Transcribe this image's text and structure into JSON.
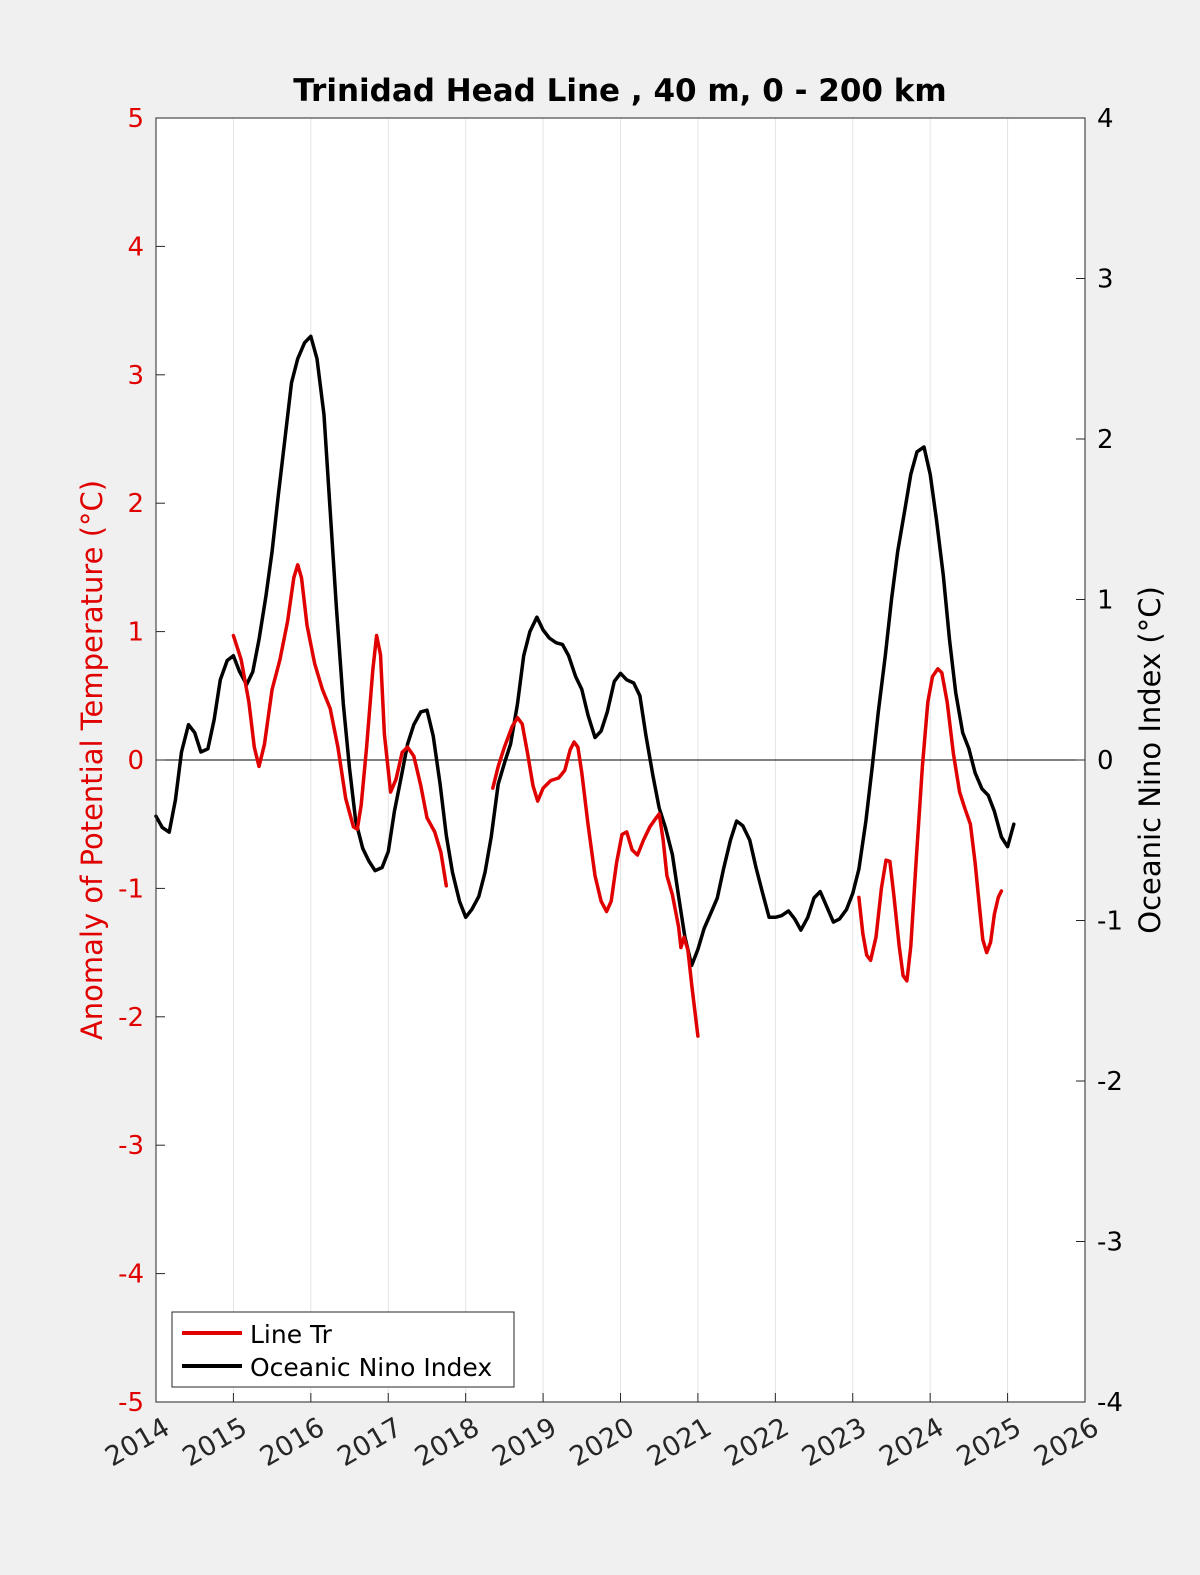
{
  "chart_data": {
    "type": "line",
    "title": "Trinidad Head Line , 40 m, 0 - 200 km",
    "ylabel": "Anomaly of Potential Temperature (°C)",
    "y2label": "Oceanic Nino Index (°C)",
    "xlim": [
      2014,
      2026
    ],
    "ylim": [
      -5,
      5
    ],
    "y2lim": [
      -4,
      4
    ],
    "xticks": [
      "2014",
      "2015",
      "2016",
      "2017",
      "2018",
      "2019",
      "2020",
      "2021",
      "2022",
      "2023",
      "2024",
      "2025",
      "2026"
    ],
    "yticks": [
      "-5",
      "-4",
      "-3",
      "-2",
      "-1",
      "0",
      "1",
      "2",
      "3",
      "4",
      "5"
    ],
    "y2ticks": [
      "-4",
      "-3",
      "-2",
      "-1",
      "0",
      "1",
      "2",
      "3",
      "4"
    ],
    "grid": "vertical",
    "legend_position": "bottom-left",
    "colors": {
      "line_tr": "#e00000",
      "oni": "#000000",
      "axis_left": "#e00000",
      "axis_right": "#000000"
    },
    "series": [
      {
        "name": "Line Tr",
        "axis": "left",
        "color": "#e00000",
        "segments": [
          [
            [
              2015.0,
              0.97
            ],
            [
              2015.1,
              0.78
            ],
            [
              2015.2,
              0.45
            ],
            [
              2015.27,
              0.1
            ],
            [
              2015.33,
              -0.05
            ],
            [
              2015.4,
              0.12
            ],
            [
              2015.5,
              0.55
            ],
            [
              2015.6,
              0.78
            ],
            [
              2015.7,
              1.08
            ],
            [
              2015.78,
              1.42
            ],
            [
              2015.83,
              1.52
            ],
            [
              2015.88,
              1.42
            ],
            [
              2015.95,
              1.05
            ],
            [
              2016.05,
              0.75
            ],
            [
              2016.15,
              0.55
            ],
            [
              2016.25,
              0.4
            ],
            [
              2016.35,
              0.1
            ],
            [
              2016.45,
              -0.3
            ],
            [
              2016.55,
              -0.52
            ],
            [
              2016.6,
              -0.54
            ],
            [
              2016.65,
              -0.35
            ],
            [
              2016.72,
              0.1
            ],
            [
              2016.8,
              0.7
            ],
            [
              2016.85,
              0.97
            ],
            [
              2016.9,
              0.82
            ],
            [
              2016.95,
              0.2
            ],
            [
              2017.03,
              -0.25
            ],
            [
              2017.1,
              -0.15
            ],
            [
              2017.18,
              0.06
            ],
            [
              2017.25,
              0.1
            ],
            [
              2017.33,
              0.03
            ],
            [
              2017.42,
              -0.2
            ],
            [
              2017.5,
              -0.45
            ],
            [
              2017.6,
              -0.56
            ],
            [
              2017.68,
              -0.72
            ],
            [
              2017.75,
              -0.98
            ]
          ],
          [
            [
              2018.35,
              -0.22
            ],
            [
              2018.42,
              -0.05
            ],
            [
              2018.5,
              0.1
            ],
            [
              2018.6,
              0.26
            ],
            [
              2018.67,
              0.33
            ],
            [
              2018.73,
              0.28
            ],
            [
              2018.8,
              0.05
            ],
            [
              2018.87,
              -0.2
            ],
            [
              2018.93,
              -0.32
            ],
            [
              2019.0,
              -0.22
            ],
            [
              2019.1,
              -0.16
            ],
            [
              2019.2,
              -0.14
            ],
            [
              2019.28,
              -0.08
            ],
            [
              2019.35,
              0.08
            ],
            [
              2019.4,
              0.14
            ],
            [
              2019.45,
              0.1
            ],
            [
              2019.5,
              -0.1
            ],
            [
              2019.58,
              -0.5
            ],
            [
              2019.67,
              -0.9
            ],
            [
              2019.75,
              -1.1
            ],
            [
              2019.82,
              -1.18
            ],
            [
              2019.88,
              -1.1
            ],
            [
              2019.95,
              -0.8
            ],
            [
              2020.02,
              -0.58
            ],
            [
              2020.08,
              -0.56
            ],
            [
              2020.15,
              -0.7
            ],
            [
              2020.22,
              -0.74
            ],
            [
              2020.3,
              -0.62
            ],
            [
              2020.38,
              -0.52
            ],
            [
              2020.45,
              -0.46
            ],
            [
              2020.5,
              -0.42
            ],
            [
              2020.55,
              -0.62
            ],
            [
              2020.6,
              -0.9
            ],
            [
              2020.67,
              -1.05
            ],
            [
              2020.75,
              -1.3
            ],
            [
              2020.78,
              -1.46
            ],
            [
              2020.82,
              -1.38
            ],
            [
              2020.87,
              -1.48
            ],
            [
              2020.92,
              -1.75
            ],
            [
              2020.96,
              -1.95
            ],
            [
              2021.0,
              -2.15
            ]
          ],
          [
            [
              2023.08,
              -1.07
            ],
            [
              2023.13,
              -1.35
            ],
            [
              2023.18,
              -1.52
            ],
            [
              2023.23,
              -1.56
            ],
            [
              2023.3,
              -1.38
            ],
            [
              2023.37,
              -1.0
            ],
            [
              2023.43,
              -0.78
            ],
            [
              2023.48,
              -0.79
            ],
            [
              2023.53,
              -1.05
            ],
            [
              2023.6,
              -1.45
            ],
            [
              2023.65,
              -1.68
            ],
            [
              2023.7,
              -1.72
            ],
            [
              2023.75,
              -1.45
            ],
            [
              2023.82,
              -0.78
            ],
            [
              2023.9,
              -0.05
            ],
            [
              2023.97,
              0.45
            ],
            [
              2024.03,
              0.65
            ],
            [
              2024.1,
              0.71
            ],
            [
              2024.15,
              0.68
            ],
            [
              2024.22,
              0.45
            ],
            [
              2024.3,
              0.05
            ],
            [
              2024.38,
              -0.25
            ],
            [
              2024.45,
              -0.38
            ],
            [
              2024.52,
              -0.5
            ],
            [
              2024.58,
              -0.8
            ],
            [
              2024.63,
              -1.1
            ],
            [
              2024.68,
              -1.4
            ],
            [
              2024.73,
              -1.5
            ],
            [
              2024.78,
              -1.42
            ],
            [
              2024.83,
              -1.2
            ],
            [
              2024.88,
              -1.07
            ],
            [
              2024.92,
              -1.02
            ]
          ]
        ]
      },
      {
        "name": "Oceanic Nino Index",
        "axis": "right",
        "color": "#000000",
        "segments": [
          [
            [
              2014.0,
              -0.35
            ],
            [
              2014.08,
              -0.42
            ],
            [
              2014.17,
              -0.45
            ],
            [
              2014.25,
              -0.25
            ],
            [
              2014.33,
              0.05
            ],
            [
              2014.42,
              0.22
            ],
            [
              2014.5,
              0.17
            ],
            [
              2014.58,
              0.05
            ],
            [
              2014.67,
              0.07
            ],
            [
              2014.75,
              0.25
            ],
            [
              2014.83,
              0.5
            ],
            [
              2014.92,
              0.62
            ],
            [
              2015.0,
              0.65
            ],
            [
              2015.08,
              0.55
            ],
            [
              2015.17,
              0.47
            ],
            [
              2015.25,
              0.55
            ],
            [
              2015.33,
              0.75
            ],
            [
              2015.42,
              1.02
            ],
            [
              2015.5,
              1.3
            ],
            [
              2015.58,
              1.65
            ],
            [
              2015.67,
              2.02
            ],
            [
              2015.75,
              2.35
            ],
            [
              2015.83,
              2.5
            ],
            [
              2015.92,
              2.6
            ],
            [
              2016.0,
              2.64
            ],
            [
              2016.08,
              2.5
            ],
            [
              2016.17,
              2.15
            ],
            [
              2016.25,
              1.55
            ],
            [
              2016.33,
              0.95
            ],
            [
              2016.42,
              0.35
            ],
            [
              2016.5,
              -0.05
            ],
            [
              2016.58,
              -0.38
            ],
            [
              2016.67,
              -0.55
            ],
            [
              2016.75,
              -0.63
            ],
            [
              2016.83,
              -0.69
            ],
            [
              2016.92,
              -0.67
            ],
            [
              2017.0,
              -0.57
            ],
            [
              2017.08,
              -0.32
            ],
            [
              2017.17,
              -0.1
            ],
            [
              2017.25,
              0.1
            ],
            [
              2017.33,
              0.22
            ],
            [
              2017.42,
              0.3
            ],
            [
              2017.5,
              0.31
            ],
            [
              2017.58,
              0.15
            ],
            [
              2017.67,
              -0.15
            ],
            [
              2017.75,
              -0.47
            ],
            [
              2017.83,
              -0.7
            ],
            [
              2017.92,
              -0.88
            ],
            [
              2018.0,
              -0.98
            ],
            [
              2018.08,
              -0.93
            ],
            [
              2018.17,
              -0.85
            ],
            [
              2018.25,
              -0.7
            ],
            [
              2018.33,
              -0.48
            ],
            [
              2018.42,
              -0.15
            ],
            [
              2018.5,
              -0.02
            ],
            [
              2018.58,
              0.1
            ],
            [
              2018.67,
              0.35
            ],
            [
              2018.75,
              0.65
            ],
            [
              2018.83,
              0.8
            ],
            [
              2018.92,
              0.89
            ],
            [
              2019.0,
              0.81
            ],
            [
              2019.08,
              0.76
            ],
            [
              2019.17,
              0.73
            ],
            [
              2019.25,
              0.72
            ],
            [
              2019.33,
              0.65
            ],
            [
              2019.42,
              0.52
            ],
            [
              2019.5,
              0.44
            ],
            [
              2019.58,
              0.28
            ],
            [
              2019.67,
              0.14
            ],
            [
              2019.75,
              0.18
            ],
            [
              2019.83,
              0.3
            ],
            [
              2019.92,
              0.49
            ],
            [
              2020.0,
              0.54
            ],
            [
              2020.08,
              0.5
            ],
            [
              2020.17,
              0.48
            ],
            [
              2020.25,
              0.4
            ],
            [
              2020.33,
              0.15
            ],
            [
              2020.42,
              -0.1
            ],
            [
              2020.5,
              -0.3
            ],
            [
              2020.58,
              -0.42
            ],
            [
              2020.67,
              -0.59
            ],
            [
              2020.75,
              -0.85
            ],
            [
              2020.83,
              -1.1
            ],
            [
              2020.92,
              -1.28
            ],
            [
              2021.0,
              -1.18
            ],
            [
              2021.08,
              -1.05
            ],
            [
              2021.17,
              -0.95
            ],
            [
              2021.25,
              -0.86
            ],
            [
              2021.33,
              -0.68
            ],
            [
              2021.42,
              -0.5
            ],
            [
              2021.5,
              -0.38
            ],
            [
              2021.58,
              -0.41
            ],
            [
              2021.67,
              -0.5
            ],
            [
              2021.75,
              -0.67
            ],
            [
              2021.83,
              -0.82
            ],
            [
              2021.92,
              -0.98
            ],
            [
              2022.0,
              -0.98
            ],
            [
              2022.08,
              -0.97
            ],
            [
              2022.17,
              -0.94
            ],
            [
              2022.25,
              -0.99
            ],
            [
              2022.33,
              -1.06
            ],
            [
              2022.42,
              -0.98
            ],
            [
              2022.5,
              -0.86
            ],
            [
              2022.58,
              -0.82
            ],
            [
              2022.67,
              -0.92
            ],
            [
              2022.75,
              -1.01
            ],
            [
              2022.83,
              -0.99
            ],
            [
              2022.92,
              -0.93
            ],
            [
              2023.0,
              -0.83
            ],
            [
              2023.08,
              -0.68
            ],
            [
              2023.17,
              -0.38
            ],
            [
              2023.25,
              -0.05
            ],
            [
              2023.33,
              0.3
            ],
            [
              2023.42,
              0.65
            ],
            [
              2023.5,
              1.0
            ],
            [
              2023.58,
              1.3
            ],
            [
              2023.67,
              1.55
            ],
            [
              2023.75,
              1.78
            ],
            [
              2023.83,
              1.92
            ],
            [
              2023.92,
              1.95
            ],
            [
              2024.0,
              1.78
            ],
            [
              2024.08,
              1.5
            ],
            [
              2024.17,
              1.15
            ],
            [
              2024.25,
              0.75
            ],
            [
              2024.33,
              0.42
            ],
            [
              2024.42,
              0.17
            ],
            [
              2024.5,
              0.07
            ],
            [
              2024.58,
              -0.08
            ],
            [
              2024.67,
              -0.18
            ],
            [
              2024.75,
              -0.22
            ],
            [
              2024.83,
              -0.32
            ],
            [
              2024.92,
              -0.48
            ],
            [
              2025.0,
              -0.54
            ],
            [
              2025.08,
              -0.4
            ]
          ]
        ]
      }
    ]
  }
}
